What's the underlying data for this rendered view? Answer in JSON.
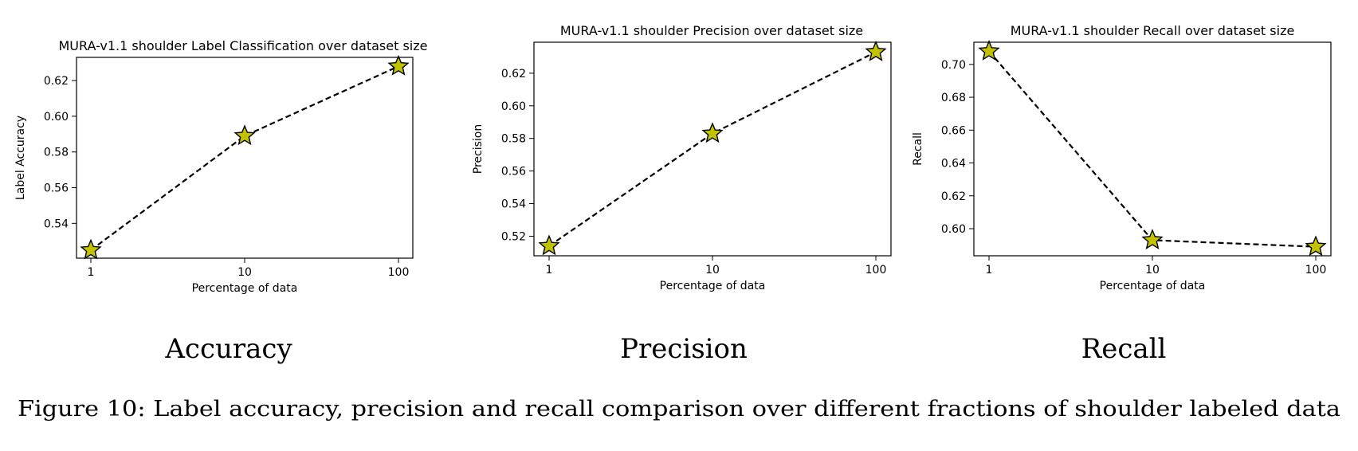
{
  "figure_caption": "Figure 10: Label accuracy, precision and recall comparison over different fractions of shoulder labeled data",
  "colors": {
    "marker_fill": "#c2c200",
    "marker_edge": "#000000",
    "line": "#000000"
  },
  "chart_data": [
    {
      "type": "line",
      "title": "MURA-v1.1 shoulder Label Classification over dataset size",
      "xlabel": "Percentage of data",
      "ylabel": "Label Accuracy",
      "subfig_label": "Accuracy",
      "x": [
        1,
        10,
        100
      ],
      "x_scale": "log",
      "x_ticks": [
        "1",
        "10",
        "100"
      ],
      "y": [
        0.525,
        0.589,
        0.628
      ],
      "ylim": [
        0.5205,
        0.633
      ],
      "y_ticks": [
        0.54,
        0.56,
        0.58,
        0.6,
        0.62
      ],
      "y_tick_labels": [
        "0.54",
        "0.56",
        "0.58",
        "0.60",
        "0.62"
      ],
      "line_style": "dashed",
      "marker": "star",
      "grid": false
    },
    {
      "type": "line",
      "title": "MURA-v1.1 shoulder Precision over dataset size",
      "xlabel": "Percentage of data",
      "ylabel": "Precision",
      "subfig_label": "Precision",
      "x": [
        1,
        10,
        100
      ],
      "x_scale": "log",
      "x_ticks": [
        "1",
        "10",
        "100"
      ],
      "y": [
        0.514,
        0.583,
        0.633
      ],
      "ylim": [
        0.508,
        0.639
      ],
      "y_ticks": [
        0.52,
        0.54,
        0.56,
        0.58,
        0.6,
        0.62
      ],
      "y_tick_labels": [
        "0.52",
        "0.54",
        "0.56",
        "0.58",
        "0.60",
        "0.62"
      ],
      "line_style": "dashed",
      "marker": "star",
      "grid": false
    },
    {
      "type": "line",
      "title": "MURA-v1.1 shoulder Recall over dataset size",
      "xlabel": "Percentage of data",
      "ylabel": "Recall",
      "subfig_label": "Recall",
      "x": [
        1,
        10,
        100
      ],
      "x_scale": "log",
      "x_ticks": [
        "1",
        "10",
        "100"
      ],
      "y": [
        0.708,
        0.593,
        0.589
      ],
      "ylim": [
        0.5835,
        0.7135
      ],
      "y_ticks": [
        0.6,
        0.62,
        0.64,
        0.66,
        0.68,
        0.7
      ],
      "y_tick_labels": [
        "0.60",
        "0.62",
        "0.64",
        "0.66",
        "0.68",
        "0.70"
      ],
      "line_style": "dashed",
      "marker": "star",
      "grid": false
    }
  ]
}
